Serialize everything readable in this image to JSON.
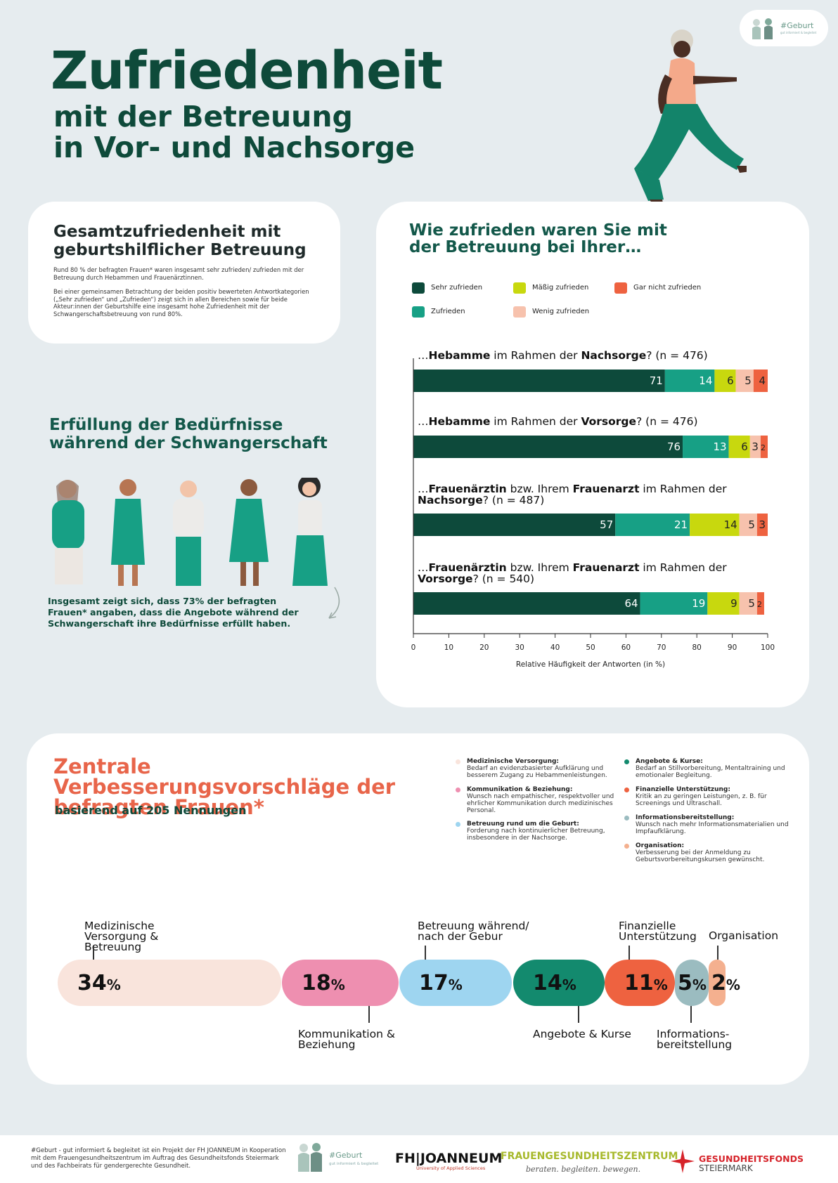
{
  "header": {
    "title": "Zufriedenheit",
    "subtitle_line1": "mit der Betreuung",
    "subtitle_line2": "in Vor- und Nachsorge",
    "badge_title": "#Geburt",
    "badge_sub": "gut informiert & begleitet"
  },
  "overall": {
    "title": "Gesamtzufriedenheit mit geburtshilflicher Betreuung",
    "para1": "Rund 80 % der befragten Frauen* waren insgesamt sehr zufrieden/ zufrieden mit der Betreuung durch Hebammen und Frauenärztinnen.",
    "para2": "Bei einer gemeinsamen Betrachtung der beiden positiv bewerteten Antwortkategorien („Sehr zufrieden“ und „Zufrieden“) zeigt sich in allen Bereichen sowie für beide Akteur:innen der Geburtshilfe eine insgesamt hohe Zufriedenheit mit der Schwangerschaftsbetreuung von rund 80%."
  },
  "needs": {
    "title": "Erfüllung der Bedürfnisse während der Schwangerschaft",
    "text": "Insgesamt zeigt sich, dass 73% der befragten Frauen* angaben, dass die Angebote während der Schwangerschaft ihre Bedürfnisse erfüllt haben."
  },
  "satisfaction": {
    "title": "Wie zufrieden waren Sie mit der Betreuung bei Ihrer…"
  },
  "chart_data": {
    "type": "bar",
    "orientation": "horizontal",
    "stacked": true,
    "xlim": [
      0,
      100
    ],
    "xticks": [
      0,
      10,
      20,
      30,
      40,
      50,
      60,
      70,
      80,
      90,
      100
    ],
    "xlabel": "Relative Häufigkeit der Antworten (in %)",
    "legend": [
      {
        "name": "Sehr zufrieden",
        "color": "#0d4a3b"
      },
      {
        "name": "Zufrieden",
        "color": "#17a085"
      },
      {
        "name": "Mäßig zufrieden",
        "color": "#c8d80e"
      },
      {
        "name": "Wenig zufrieden",
        "color": "#f7c2ad"
      },
      {
        "name": "Gar nicht zufrieden",
        "color": "#ee6240"
      }
    ],
    "bars": [
      {
        "pre": "…",
        "b1": "Hebamme",
        "mid": " im Rahmen der ",
        "b2": "Nachsorge",
        "post": "? (n = 476)",
        "values": [
          71,
          14,
          6,
          5,
          4
        ]
      },
      {
        "pre": "…",
        "b1": "Hebamme",
        "mid": " im Rahmen der ",
        "b2": "Vorsorge",
        "post": "? (n = 476)",
        "values": [
          76,
          13,
          6,
          3,
          2
        ]
      },
      {
        "pre": "…",
        "b1": "Frauenärztin",
        "mid": " bzw. Ihrem ",
        "b2": "Frauenarzt",
        "post": " im Rahmen der ",
        "b3": "Nachsorge",
        "post2": "? (n = 487)",
        "values": [
          57,
          21,
          14,
          5,
          3
        ]
      },
      {
        "pre": "…",
        "b1": "Frauenärztin",
        "mid": " bzw. Ihrem ",
        "b2": "Frauenarzt",
        "post": " im Rahmen der ",
        "b3": "Vorsorge",
        "post2": "? (n = 540)",
        "values": [
          64,
          19,
          9,
          5,
          2
        ]
      }
    ]
  },
  "suggestions": {
    "title": "Zentrale Verbesserungsvorschläge der befragten Frauen*",
    "subtitle": "basierend auf 205 Nennungen",
    "notes": [
      {
        "head": "Medizinische Versorgung:",
        "text": "Bedarf an evidenzbasierter Aufklärung und besserem Zugang zu Hebammenleistungen.",
        "color": "#f9e4dc"
      },
      {
        "head": "Kommunikation & Beziehung:",
        "text": "Wunsch nach empathischer, respektvoller und ehrlicher Kommunikation durch medizinisches Personal.",
        "color": "#ee8fb0"
      },
      {
        "head": "Betreuung rund um die Geburt:",
        "text": "Forderung nach kontinuierlicher Betreuung, insbesondere in der Nachsorge.",
        "color": "#9ed5f0"
      },
      {
        "head": "Angebote & Kurse:",
        "text": "Bedarf an Stillvorbereitung, Mentaltraining und emotionaler Begleitung.",
        "color": "#138a6e"
      },
      {
        "head": "Finanzielle Unterstützung:",
        "text": "Kritik an zu geringen Leistungen, z. B. für Screenings und Ultraschall.",
        "color": "#ee6240"
      },
      {
        "head": "Informationsbereitstellung:",
        "text": "Wunsch nach mehr Informationsmaterialien und Impfaufklärung.",
        "color": "#9bbcc0"
      },
      {
        "head": "Organisation:",
        "text": "Verbesserung bei der Anmeldung zu Geburtsvorbereitungskursen gewünscht.",
        "color": "#f4b08f"
      }
    ],
    "categories": [
      {
        "label": "Medizinische Versorgung & Betreuung",
        "value": 34,
        "unit": "%",
        "color": "#f9e4dc"
      },
      {
        "label": "Kommunikation & Beziehung",
        "value": 18,
        "unit": "%",
        "color": "#ee8fb0"
      },
      {
        "label": "Betreuung während/ nach der Gebur",
        "value": 17,
        "unit": "%",
        "color": "#9ed5f0"
      },
      {
        "label": "Angebote & Kurse",
        "value": 14,
        "unit": "%",
        "color": "#138a6e"
      },
      {
        "label": "Finanzielle Unterstützung",
        "value": 11,
        "unit": "%",
        "color": "#ee6240"
      },
      {
        "label": "Informations-bereitstellung",
        "value": 5,
        "unit": "%",
        "color": "#9bbcc0"
      },
      {
        "label": "Organisation",
        "value": 2,
        "unit": "%",
        "color": "#f4b08f"
      }
    ]
  },
  "footer": {
    "text": "#Geburt - gut informiert & begleitet ist ein Projekt der FH JOANNEUM in Kooperation mit dem Frauengesundheitszentrum im Auftrag des Gesundheitsfonds Steiermark und des Fachbeirats für gendergerechte Gesundheit.",
    "logo_geburt": "#Geburt",
    "logo_geburt_sub": "gut informiert & begleitet",
    "fh": "FH|JOANNEUM",
    "fh_sub": "University of Applied Sciences",
    "fgz": "FRAUENGESUNDHEITSZENTRUM",
    "fgz_sub": "beraten. begleiten. bewegen.",
    "gf1": "GESUNDHEITSFONDS",
    "gf2": "STEIERMARK"
  }
}
